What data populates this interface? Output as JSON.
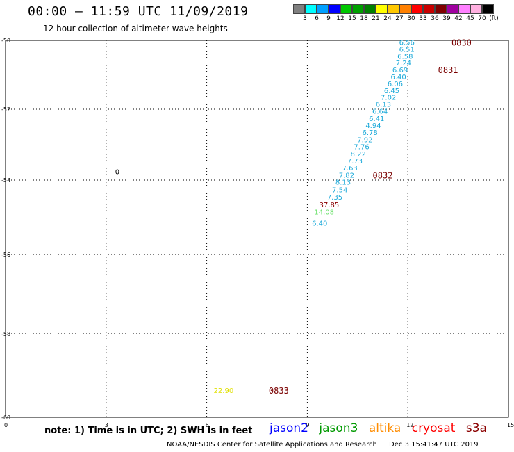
{
  "title": "00:00 – 11:59 UTC 11/09/2019",
  "subtitle": "12 hour collection of altimeter wave heights",
  "color_scale": {
    "labels": [
      "3",
      "6",
      "9",
      "12",
      "15",
      "18",
      "21",
      "24",
      "27",
      "30",
      "33",
      "36",
      "39",
      "42",
      "45",
      "70",
      "(ft)"
    ],
    "colors": [
      "#808080",
      "#00ffff",
      "#00a0ff",
      "#0000ff",
      "#00c800",
      "#00a000",
      "#008000",
      "#ffff00",
      "#ffc800",
      "#ff8000",
      "#ff0000",
      "#c80000",
      "#800000",
      "#a000a0",
      "#ff80ff",
      "#ffb0e0",
      "#000000"
    ]
  },
  "map": {
    "x_ticks": [
      "0",
      "3",
      "6",
      "9",
      "12",
      "15"
    ],
    "y_ticks": [
      "-50",
      "-52",
      "-54",
      "-56",
      "-58",
      "-60"
    ],
    "labels": [
      {
        "text": "6.56",
        "x": 12.2,
        "y": -50.05,
        "color": "#1aa9d9"
      },
      {
        "text": "6.51",
        "x": 12.2,
        "y": -50.25,
        "color": "#1aa9d9"
      },
      {
        "text": "6.58",
        "x": 12.15,
        "y": -50.45,
        "color": "#1aa9d9"
      },
      {
        "text": "7.24",
        "x": 12.1,
        "y": -50.65,
        "color": "#1aa9d9"
      },
      {
        "text": "6.69",
        "x": 12.0,
        "y": -50.85,
        "color": "#1aa9d9"
      },
      {
        "text": "6.40",
        "x": 11.95,
        "y": -51.05,
        "color": "#1aa9d9"
      },
      {
        "text": "6.06",
        "x": 11.85,
        "y": -51.25,
        "color": "#1aa9d9"
      },
      {
        "text": "6.45",
        "x": 11.75,
        "y": -51.45,
        "color": "#1aa9d9"
      },
      {
        "text": "7.02",
        "x": 11.65,
        "y": -51.65,
        "color": "#1aa9d9"
      },
      {
        "text": "6.13",
        "x": 11.5,
        "y": -51.85,
        "color": "#1aa9d9"
      },
      {
        "text": "6.64",
        "x": 11.4,
        "y": -52.05,
        "color": "#1aa9d9"
      },
      {
        "text": "6.41",
        "x": 11.3,
        "y": -52.25,
        "color": "#1aa9d9"
      },
      {
        "text": "4.94",
        "x": 11.2,
        "y": -52.45,
        "color": "#1aa9d9"
      },
      {
        "text": "6.78",
        "x": 11.1,
        "y": -52.65,
        "color": "#1aa9d9"
      },
      {
        "text": "7.92",
        "x": 10.95,
        "y": -52.85,
        "color": "#1aa9d9"
      },
      {
        "text": "7.76",
        "x": 10.85,
        "y": -53.05,
        "color": "#1aa9d9"
      },
      {
        "text": "8.22",
        "x": 10.75,
        "y": -53.25,
        "color": "#1aa9d9"
      },
      {
        "text": "7.73",
        "x": 10.65,
        "y": -53.45,
        "color": "#1aa9d9"
      },
      {
        "text": "7.63",
        "x": 10.5,
        "y": -53.65,
        "color": "#1aa9d9"
      },
      {
        "text": "7.82",
        "x": 10.4,
        "y": -53.85,
        "color": "#1aa9d9"
      },
      {
        "text": "8.13",
        "x": 10.3,
        "y": -54.05,
        "color": "#1aa9d9"
      },
      {
        "text": "7.54",
        "x": 10.2,
        "y": -54.25,
        "color": "#1aa9d9"
      },
      {
        "text": "7.35",
        "x": 10.05,
        "y": -54.45,
        "color": "#1aa9d9"
      },
      {
        "text": "37.85",
        "x": 9.95,
        "y": -54.65,
        "color": "#8b0000"
      },
      {
        "text": "14.08",
        "x": 9.8,
        "y": -54.85,
        "color": "#66e066"
      },
      {
        "text": "6.40",
        "x": 9.6,
        "y": -55.15,
        "color": "#1aa9d9"
      },
      {
        "text": "22.90",
        "x": 6.8,
        "y": -59.35,
        "color": "#e0e000"
      },
      {
        "text": "0",
        "x": 3.4,
        "y": -53.75,
        "color": "#000000"
      }
    ],
    "orbits": [
      {
        "text": "0830",
        "x": 13.3,
        "y": -50.05,
        "color": "#7a0000"
      },
      {
        "text": "0831",
        "x": 12.9,
        "y": -50.85,
        "color": "#7a0000"
      },
      {
        "text": "0832",
        "x": 10.95,
        "y": -53.85,
        "color": "#7a0000"
      },
      {
        "text": "0833",
        "x": 7.85,
        "y": -59.35,
        "color": "#7a0000"
      }
    ]
  },
  "note": "note: 1) Time is in UTC; 2) SWH is in feet",
  "legend": [
    {
      "name": "jason2",
      "color": "#0000ff"
    },
    {
      "name": "jason3",
      "color": "#009900"
    },
    {
      "name": "altika",
      "color": "#ff8c00"
    },
    {
      "name": "cryosat",
      "color": "#ff0000"
    },
    {
      "name": "s3a",
      "color": "#8b0000"
    }
  ],
  "footer": {
    "credit": "NOAA/NESDIS Center for Satellite Applications and Research",
    "timestamp": "Dec  3 15:41:47 UTC 2019"
  }
}
